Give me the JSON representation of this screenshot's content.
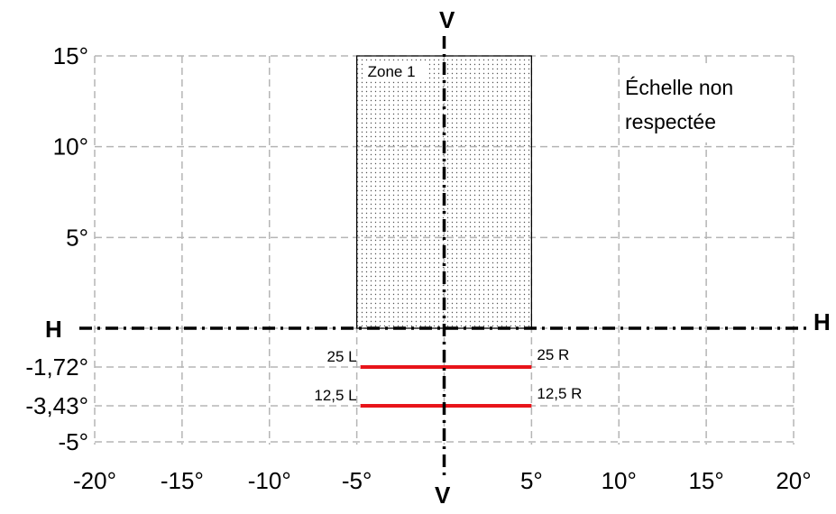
{
  "diagram": {
    "axes": {
      "vertical_label_top": "V",
      "vertical_label_bottom": "V",
      "horizontal_label_left": "H",
      "horizontal_label_right": "H"
    },
    "y_ticks": [
      {
        "value": 15,
        "label": "15°"
      },
      {
        "value": 10,
        "label": "10°"
      },
      {
        "value": 5,
        "label": "5°"
      },
      {
        "value": -1.72,
        "label": "-1,72°"
      },
      {
        "value": -3.43,
        "label": "-3,43°"
      },
      {
        "value": -5,
        "label": "-5°"
      }
    ],
    "x_ticks": [
      {
        "value": -20,
        "label": "-20°"
      },
      {
        "value": -15,
        "label": "-15°"
      },
      {
        "value": -10,
        "label": "-10°"
      },
      {
        "value": -5,
        "label": "-5°"
      },
      {
        "value": 5,
        "label": "5°"
      },
      {
        "value": 10,
        "label": "10°"
      },
      {
        "value": 15,
        "label": "15°"
      },
      {
        "value": 20,
        "label": "20°"
      }
    ],
    "x_range": [
      -20,
      20
    ],
    "y_range": [
      -5,
      15
    ],
    "grid": true,
    "zone": {
      "label": "Zone 1",
      "x_range": [
        -5,
        5
      ],
      "y_range": [
        0,
        15
      ],
      "fill": "stippled"
    },
    "red_segments": [
      {
        "y": -1.72,
        "x_range": [
          -5,
          5
        ],
        "left_label": "25 L",
        "right_label": "25 R"
      },
      {
        "y": -3.43,
        "x_range": [
          -5,
          5
        ],
        "left_label": "12,5 L",
        "right_label": "12,5 R"
      }
    ],
    "note_lines": [
      "Échelle non",
      "respectée"
    ],
    "colors": {
      "grid": "#b5b5b5",
      "axes": "#000000",
      "segments": "#e8141a"
    }
  }
}
